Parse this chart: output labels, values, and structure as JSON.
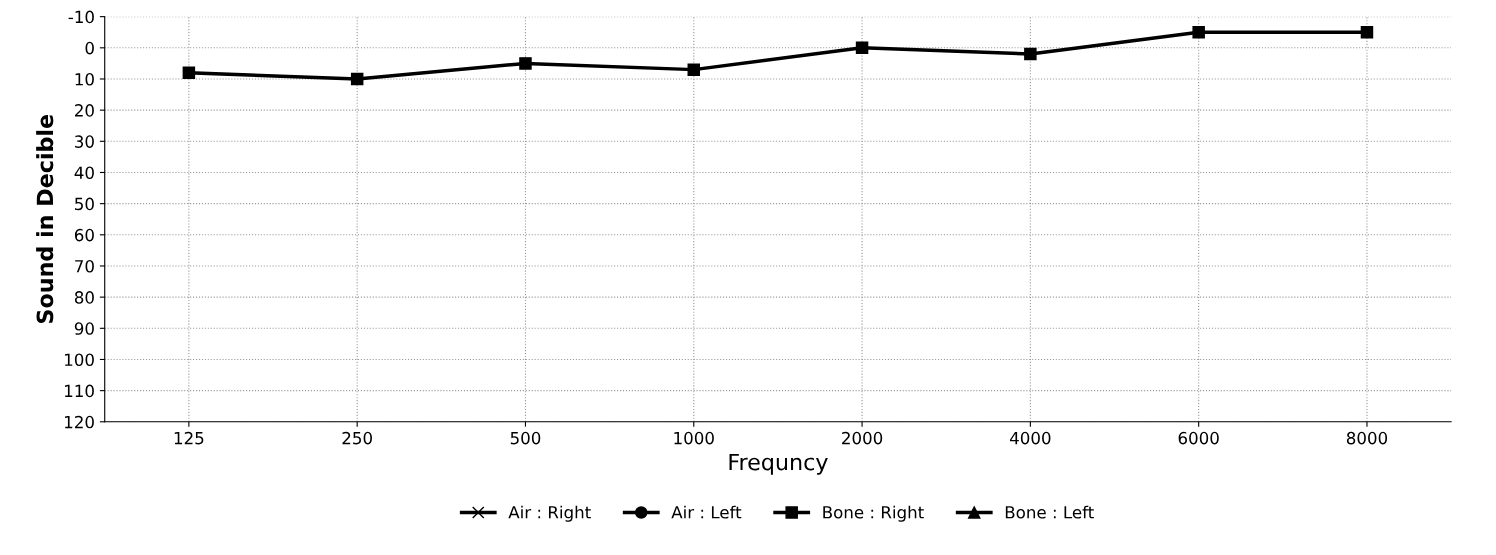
{
  "chart_data": {
    "type": "line",
    "xlabel": "Frequncy",
    "ylabel": "Sound in Decible",
    "categories": [
      "125",
      "250",
      "500",
      "1000",
      "2000",
      "4000",
      "6000",
      "8000"
    ],
    "series": [
      {
        "name": "Air : Right",
        "color": "#000000",
        "marker": "cross",
        "values": [
          null,
          null,
          null,
          null,
          null,
          null,
          null,
          null
        ]
      },
      {
        "name": "Air : Left",
        "color": "#000000",
        "marker": "circle",
        "values": [
          null,
          null,
          null,
          null,
          null,
          null,
          null,
          null
        ]
      },
      {
        "name": "Bone : Right",
        "color": "#000000",
        "marker": "square",
        "values": [
          8,
          10,
          5,
          7,
          0,
          2,
          -5,
          -5
        ]
      },
      {
        "name": "Bone : Left",
        "color": "#000000",
        "marker": "triangle",
        "values": [
          null,
          null,
          null,
          null,
          null,
          null,
          null,
          null
        ]
      }
    ],
    "ylim": [
      120,
      -10
    ],
    "yticks": [
      -10,
      0,
      10,
      20,
      30,
      40,
      50,
      60,
      70,
      80,
      90,
      100,
      110,
      120
    ],
    "grid": true,
    "legend": "bottom",
    "line_style": "solid"
  }
}
